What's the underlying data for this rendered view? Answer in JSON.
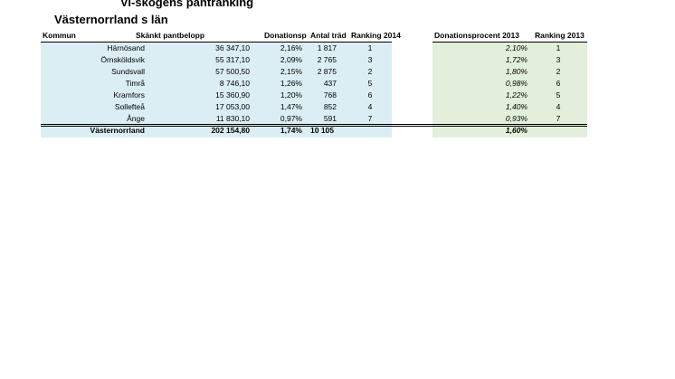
{
  "header": {
    "title": "Vi-skogens pantranking",
    "subtitle": "Västernorrland s län"
  },
  "table": {
    "columns": [
      "Kommun",
      "Skänkt pantbelopp",
      "Donationsp",
      "Antal träd",
      "Ranking 2014",
      "Donationsprocent 2013",
      "Ranking 2013"
    ],
    "rows": [
      [
        "Härnösand",
        "36 347,10",
        "2,16%",
        "1 817",
        "1",
        "2,10%",
        "1"
      ],
      [
        "Örnsköldsvik",
        "55 317,10",
        "2,09%",
        "2 765",
        "3",
        "1,72%",
        "3"
      ],
      [
        "Sundsvall",
        "57 500,50",
        "2,15%",
        "2 875",
        "2",
        "1,80%",
        "2"
      ],
      [
        "Timrå",
        "8 746,10",
        "1,26%",
        "437",
        "5",
        "0,98%",
        "6"
      ],
      [
        "Kramfors",
        "15 360,90",
        "1,20%",
        "768",
        "6",
        "1,22%",
        "5"
      ],
      [
        "Sollefteå",
        "17 053,00",
        "1,47%",
        "852",
        "4",
        "1,40%",
        "4"
      ],
      [
        "Ånge",
        "11 830,10",
        "0,97%",
        "591",
        "7",
        "0,93%",
        "7"
      ]
    ],
    "total": [
      "Västernorrland",
      "202 154,80",
      "1,74%",
      "10 105",
      "1,60%"
    ]
  }
}
